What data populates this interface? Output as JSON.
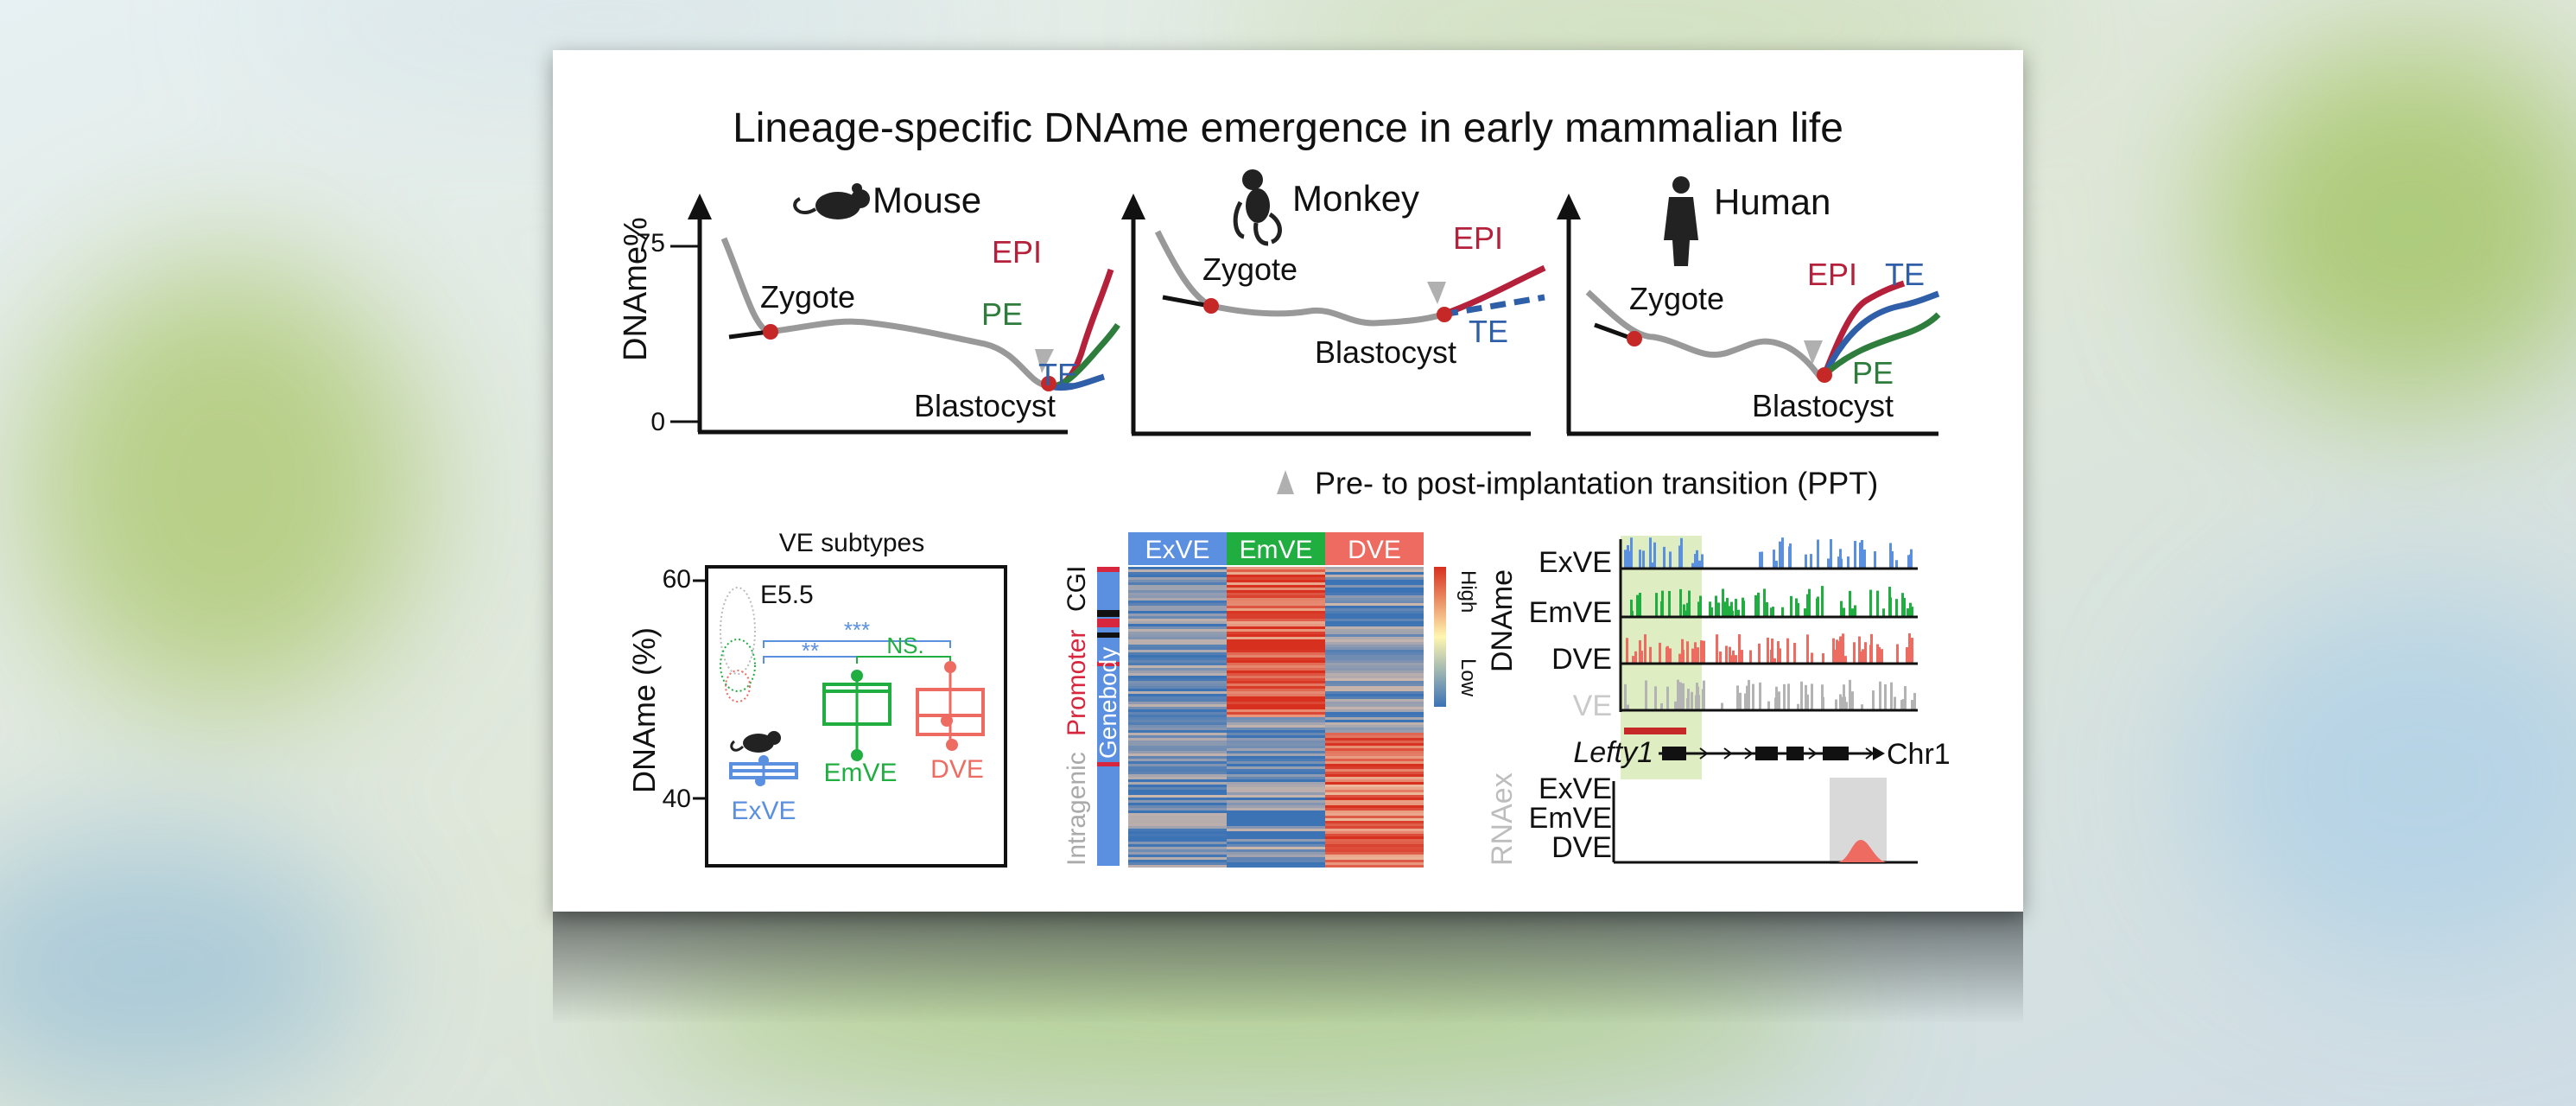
{
  "title": "Lineage-specific DNAme emergence in early mammalian life",
  "panels": {
    "mouse": {
      "species": "Mouse",
      "y_axis_label": "DNAme%",
      "y_ticks": [
        "75",
        "0"
      ],
      "zygote": "Zygote",
      "blastocyst": "Blastocyst",
      "lineages": [
        "EPI",
        "PE",
        "TE"
      ]
    },
    "monkey": {
      "species": "Monkey",
      "zygote": "Zygote",
      "blastocyst": "Blastocyst",
      "lineages": [
        "EPI",
        "TE"
      ]
    },
    "human": {
      "species": "Human",
      "zygote": "Zygote",
      "blastocyst": "Blastocyst",
      "lineages": [
        "EPI",
        "TE",
        "PE"
      ]
    }
  },
  "legend_ppt": "Pre- to post-implantation transition (PPT)",
  "boxplot": {
    "title": "VE subtypes",
    "ylabel": "DNAme (%)",
    "y_ticks": [
      "60",
      "40"
    ],
    "stage": "E5.5",
    "groups": [
      "ExVE",
      "EmVE",
      "DVE"
    ],
    "significance": [
      "***",
      "**",
      "NS."
    ]
  },
  "heatmap": {
    "columns": [
      "ExVE",
      "EmVE",
      "DVE"
    ],
    "row_groups": [
      "CGI",
      "Promoter",
      "Genebody",
      "Intragenic"
    ],
    "scale_high": "High",
    "scale_low": "Low"
  },
  "tracks": {
    "dname_label": "DNAme",
    "dname_rows": [
      "ExVE",
      "EmVE",
      "DVE",
      "VE"
    ],
    "gene": "Lefty1",
    "chrom": "Chr1",
    "rna_label": "RNAex",
    "rna_rows": [
      "ExVE",
      "EmVE",
      "DVE"
    ]
  },
  "colors": {
    "epi": "#b5203a",
    "pe": "#2e7d3c",
    "te": "#2f5fa8",
    "zygote_dot": "#c62828",
    "exve": "#5b8fe0",
    "emve": "#1fae3f",
    "dve": "#ee6b62",
    "ve": "#b3b3b3"
  }
}
